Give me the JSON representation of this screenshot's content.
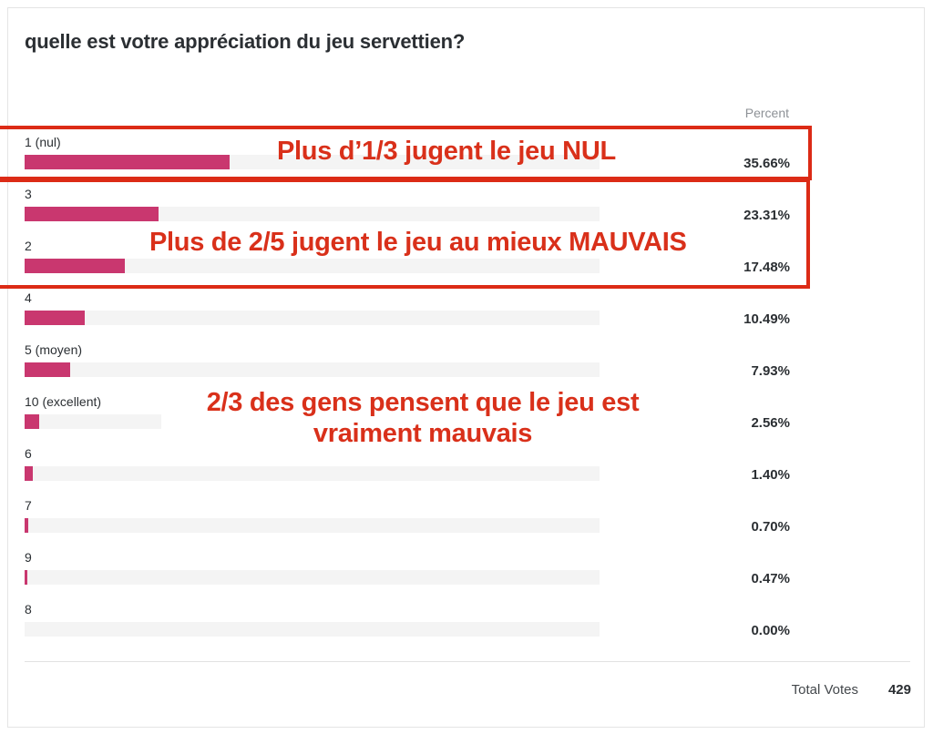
{
  "poll": {
    "question": "quelle est votre appréciation du jeu servettien?",
    "column_header": "Percent",
    "total_label": "Total Votes",
    "total_value": "429"
  },
  "colors": {
    "bar_fill": "#c9376f",
    "track": "#f4f4f4",
    "annotation": "#dc2b16"
  },
  "annotations": {
    "box1_text": "Plus d’1/3 jugent le jeu NUL",
    "box2_text": "Plus de 2/5 jugent le jeu au mieux MAUVAIS",
    "note_line1": "2/3 des gens pensent que le jeu est",
    "note_line2": "vraiment mauvais"
  },
  "chart_data": {
    "type": "bar",
    "orientation": "horizontal",
    "title": "quelle est votre appréciation du jeu servettien?",
    "xlabel": "Percent",
    "ylabel": "",
    "xlim": [
      0,
      100
    ],
    "categories": [
      "1 (nul)",
      "3",
      "2",
      "4",
      "5 (moyen)",
      "10 (excellent)",
      "6",
      "7",
      "9",
      "8"
    ],
    "values": [
      35.66,
      23.31,
      17.48,
      10.49,
      7.93,
      2.56,
      1.4,
      0.7,
      0.47,
      0.0
    ],
    "value_labels": [
      "35.66%",
      "23.31%",
      "17.48%",
      "10.49%",
      "7.93%",
      "2.56%",
      "1.40%",
      "0.70%",
      "0.47%",
      "0.00%"
    ],
    "total_votes": 429,
    "grid": false,
    "legend": "none"
  }
}
